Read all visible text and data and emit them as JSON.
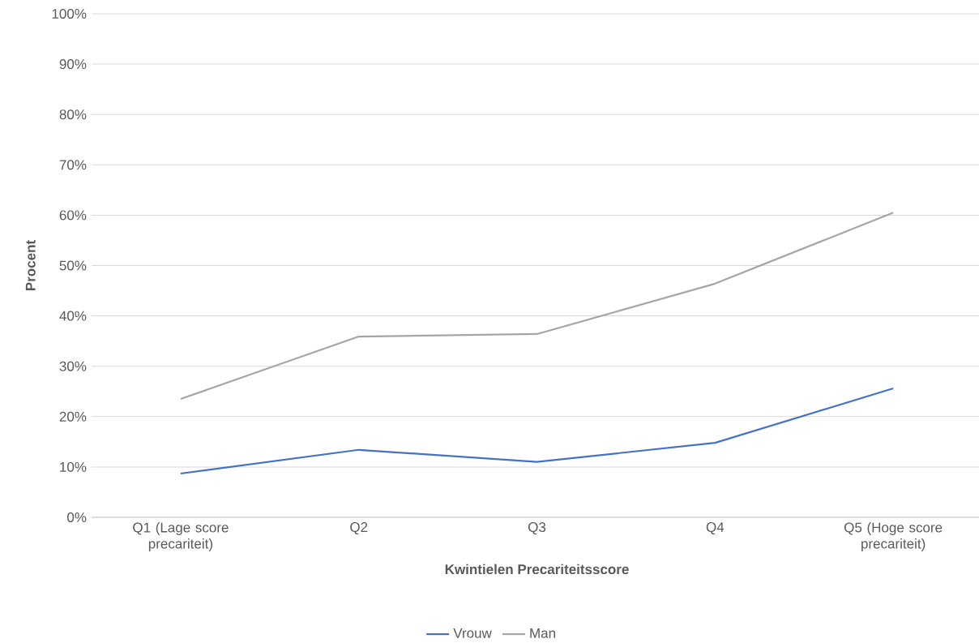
{
  "chart_data": {
    "type": "line",
    "categories": [
      "Q1 (Lage score precariteit)",
      "Q2",
      "Q3",
      "Q4",
      "Q5 (Hoge score precariteit)"
    ],
    "series": [
      {
        "name": "Vrouw",
        "color": "#4472c4",
        "values": [
          8.7,
          13.4,
          11.0,
          14.8,
          25.6
        ]
      },
      {
        "name": "Man",
        "color": "#a5a5a5",
        "values": [
          23.5,
          35.9,
          36.4,
          46.4,
          60.5
        ]
      }
    ],
    "xlabel": "Kwintielen Precariteitsscore",
    "ylabel": "Procent",
    "ylim": [
      0,
      100
    ],
    "yticks": [
      {
        "value": 0,
        "label": "0%"
      },
      {
        "value": 10,
        "label": "10%"
      },
      {
        "value": 20,
        "label": "20%"
      },
      {
        "value": 30,
        "label": "30%"
      },
      {
        "value": 40,
        "label": "40%"
      },
      {
        "value": 50,
        "label": "50%"
      },
      {
        "value": 60,
        "label": "60%"
      },
      {
        "value": 70,
        "label": "70%"
      },
      {
        "value": 80,
        "label": "80%"
      },
      {
        "value": 90,
        "label": "90%"
      },
      {
        "value": 100,
        "label": "100%"
      }
    ],
    "grid": "y",
    "legend": "bottom"
  }
}
